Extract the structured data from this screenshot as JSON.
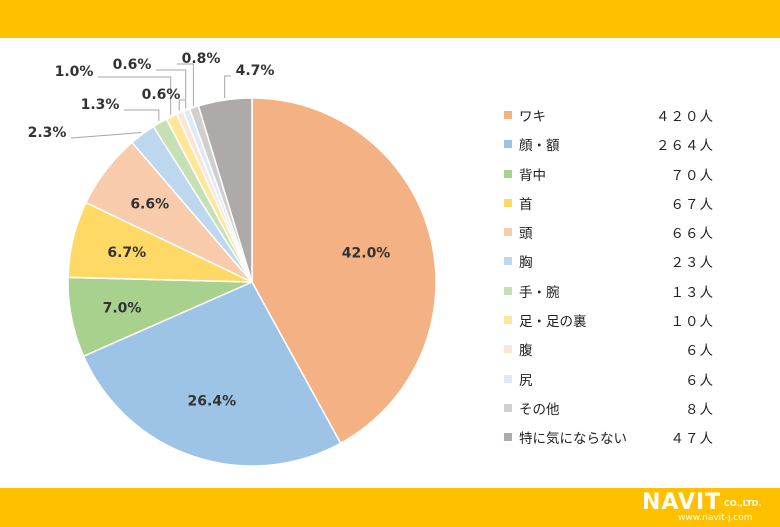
{
  "chart_data": {
    "type": "pie",
    "title": "",
    "slices": [
      {
        "label": "ワキ",
        "count": "４２０人",
        "percent": 42.0,
        "percent_label": "42.0%",
        "color": "#f4b183"
      },
      {
        "label": "顔・額",
        "count": "２６４人",
        "percent": 26.4,
        "percent_label": "26.4%",
        "color": "#9dc3e6"
      },
      {
        "label": "背中",
        "count": "７０人",
        "percent": 7.0,
        "percent_label": "7.0%",
        "color": "#a9d18e"
      },
      {
        "label": "首",
        "count": "６７人",
        "percent": 6.7,
        "percent_label": "6.7%",
        "color": "#ffd966"
      },
      {
        "label": "頭",
        "count": "６６人",
        "percent": 6.6,
        "percent_label": "6.6%",
        "color": "#f8cbad"
      },
      {
        "label": "胸",
        "count": "２３人",
        "percent": 2.3,
        "percent_label": "2.3%",
        "color": "#bdd7ee"
      },
      {
        "label": "手・腕",
        "count": "１３人",
        "percent": 1.3,
        "percent_label": "1.3%",
        "color": "#c5e0b4"
      },
      {
        "label": "足・足の裏",
        "count": "１０人",
        "percent": 1.0,
        "percent_label": "1.0%",
        "color": "#ffe699"
      },
      {
        "label": "腹",
        "count": "６人",
        "percent": 0.6,
        "percent_label": "0.6%",
        "color": "#fbe5d6"
      },
      {
        "label": "尻",
        "count": "６人",
        "percent": 0.6,
        "percent_label": "0.6%",
        "color": "#deebf7"
      },
      {
        "label": "その他",
        "count": "８人",
        "percent": 0.8,
        "percent_label": "0.8%",
        "color": "#d0cece"
      },
      {
        "label": "特に気にならない",
        "count": "４７人",
        "percent": 4.7,
        "percent_label": "4.7%",
        "color": "#aeaaaa"
      }
    ],
    "legend_position": "right"
  },
  "colors": {
    "band": "#ffc000"
  },
  "footer": {
    "brand": "NAVIT",
    "company": "CO.,LTD.",
    "url": "www.navit-j.com"
  }
}
